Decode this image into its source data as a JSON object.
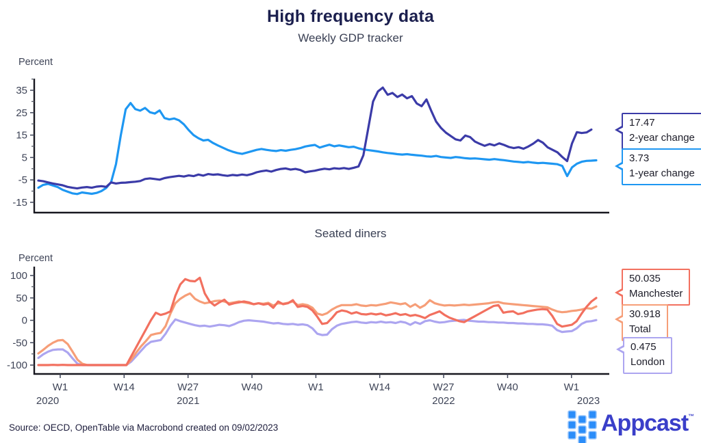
{
  "page": {
    "title": "High frequency data",
    "subtitle": "Weekly GDP tracker",
    "source": "Source: OECD, OpenTable via Macrobond created on 09/02/2023"
  },
  "logo": {
    "text": "Appcast",
    "tm": "™",
    "icon": "appcast-grid-icon",
    "icon_color": "#2b8df9",
    "text_color": "#3a3fc9"
  },
  "chart_data": [
    {
      "type": "line",
      "panel": "weekly-gdp-tracker",
      "title": "High frequency data",
      "subtitle": "Weekly GDP tracker",
      "ylabel": "Percent",
      "ylim": [
        -19.6,
        40.2
      ],
      "yticks": [
        35,
        25,
        15,
        5,
        -5,
        -15
      ],
      "yticks_minor": [
        40,
        30,
        20,
        10,
        0,
        -10
      ],
      "x_unit": "ISO weeks 2020-W48 to 2023-W6, weekly points",
      "grid": "off",
      "legend_position": "right-callouts",
      "series": [
        {
          "name": "1-year change",
          "color": "#1e97f2",
          "end_value": 3.73,
          "end_label": "3.73",
          "values": [
            -8.5,
            -7.2,
            -6.8,
            -7.5,
            -8.2,
            -9.4,
            -10.2,
            -11,
            -11.3,
            -10.6,
            -10.9,
            -11.2,
            -10.8,
            -10,
            -8.6,
            -6,
            2,
            15,
            26.5,
            29.3,
            26.6,
            25.9,
            27.1,
            25.2,
            24.6,
            26,
            22.6,
            22,
            22.4,
            21.6,
            19.8,
            17.2,
            15,
            13.6,
            12.6,
            12.9,
            11.5,
            10.4,
            9.4,
            8.4,
            7.6,
            7,
            6.6,
            7.2,
            7.8,
            8.4,
            8.8,
            8.4,
            8.1,
            7.9,
            8.3,
            8,
            8.4,
            8.7,
            9.2,
            9.9,
            10.3,
            10.6,
            9.4,
            10.1,
            10.7,
            10,
            10.4,
            10,
            9.6,
            9.8,
            9.1,
            8.6,
            8.3,
            8,
            7.7,
            7.3,
            7,
            6.8,
            6.5,
            6.3,
            6.5,
            6.2,
            6,
            5.8,
            5.5,
            5.4,
            5.7,
            5.2,
            5,
            4.8,
            5.2,
            5,
            4.7,
            4.5,
            4.6,
            4.4,
            4.2,
            4,
            4.3,
            4,
            3.8,
            3.5,
            3.2,
            3,
            2.8,
            3,
            2.7,
            2.5,
            2.6,
            2.4,
            2.2,
            2,
            1.2,
            -3.3,
            0.6,
            2.2,
            3.1,
            3.5,
            3.6,
            3.73
          ]
        },
        {
          "name": "2-year change",
          "color": "#3b3ba8",
          "end_value": 17.47,
          "end_label": "17.47",
          "values": [
            -5.3,
            -5.6,
            -6.1,
            -6.6,
            -7,
            -7.4,
            -8.1,
            -8.5,
            -8.8,
            -8.4,
            -8.2,
            -8.5,
            -8,
            -7.8,
            -8.1,
            -6.1,
            -6.6,
            -6.3,
            -6.2,
            -6,
            -5.8,
            -5.5,
            -4.6,
            -4.3,
            -4.6,
            -4.9,
            -4.2,
            -3.8,
            -3.5,
            -3.2,
            -3.5,
            -3,
            -3.3,
            -2.6,
            -3.1,
            -2.4,
            -2.7,
            -2.5,
            -2.9,
            -3.2,
            -2.8,
            -3,
            -2.6,
            -2.9,
            -2.4,
            -1.6,
            -1.1,
            -0.8,
            -1.3,
            -0.6,
            -0.1,
            0.1,
            -0.4,
            -0.1,
            -0.6,
            -1.6,
            -1.2,
            -0.9,
            -0.4,
            0,
            -0.3,
            0.2,
            0,
            0.3,
            -0.1,
            0.4,
            1,
            6,
            18,
            30,
            34.5,
            36.2,
            33,
            33.8,
            32,
            33.1,
            31.4,
            32.4,
            29.1,
            27.9,
            30.9,
            25.8,
            21,
            18.2,
            16.1,
            14.6,
            13.1,
            12.6,
            14.8,
            14.1,
            12.1,
            11.1,
            10.2,
            11,
            10.4,
            11.3,
            10.6,
            9.7,
            9.2,
            9.6,
            8.9,
            9.9,
            11.2,
            12.8,
            11.6,
            9.5,
            8.4,
            7.3,
            5.2,
            3.4,
            11.3,
            16.3,
            15.9,
            16.2,
            17.47
          ]
        }
      ],
      "callouts": [
        {
          "value": "17.47",
          "label": "2-year change",
          "color": "#3b3ba8"
        },
        {
          "value": "3.73",
          "label": "1-year change",
          "color": "#1e97f2"
        }
      ]
    },
    {
      "type": "line",
      "panel": "seated-diners",
      "title": "Seated diners",
      "ylabel": "Percent",
      "ylim": [
        -119.8,
        119.9
      ],
      "yticks": [
        100,
        50,
        0,
        -50,
        -100
      ],
      "yticks_minor": [
        75,
        25,
        -25,
        -75
      ],
      "grid": "off",
      "legend_position": "right-callouts",
      "xticks": {
        "pos": [
          4.47,
          17.53,
          30.59,
          43.65,
          56.71,
          69.76,
          82.82,
          95.88,
          108.94
        ],
        "labels": [
          "W1",
          "W14",
          "W27",
          "W40",
          "W1",
          "W14",
          "W27",
          "W40",
          "W1"
        ]
      },
      "years": {
        "pos": [
          1.9,
          30.6,
          82.8,
          112.4
        ],
        "labels": [
          "2020",
          "2021",
          "2022",
          "2023"
        ]
      },
      "series": [
        {
          "name": "London",
          "color": "#aca5f0",
          "end_value": 0.475,
          "end_label": "0.475",
          "values": [
            -84,
            -76,
            -70,
            -66,
            -65,
            -65,
            -72,
            -85,
            -97,
            -100,
            -100,
            -100,
            -100,
            -100,
            -100,
            -100,
            -100,
            -100,
            -100,
            -92,
            -80,
            -68,
            -56,
            -48,
            -46,
            -44,
            -30,
            -12,
            2,
            -2,
            -5,
            -8,
            -11,
            -13,
            -12,
            -14,
            -12,
            -10,
            -11,
            -13,
            -9,
            -4,
            -1,
            0,
            -1,
            -2,
            -3,
            -5,
            -7,
            -6,
            -8,
            -9,
            -8,
            -10,
            -9,
            -11,
            -18,
            -30,
            -33,
            -32,
            -20,
            -12,
            -8,
            -6,
            -4,
            -3,
            -5,
            -6,
            -4,
            -5,
            -3,
            -5,
            -4,
            -6,
            -3,
            -5,
            -10,
            -4,
            -8,
            -2,
            0,
            -3,
            -5,
            -4,
            -2,
            -1,
            0,
            1,
            -1,
            -2,
            -3,
            -3,
            -4,
            -4,
            -5,
            -5,
            -6,
            -6,
            -7,
            -7,
            -8,
            -8,
            -9,
            -9,
            -10,
            -12,
            -22,
            -26,
            -25,
            -24,
            -18,
            -8,
            -3,
            -2,
            0.475
          ]
        },
        {
          "name": "Total",
          "color": "#f69e78",
          "end_value": 30.918,
          "end_label": "30.918",
          "values": [
            -74,
            -66,
            -57,
            -50,
            -45,
            -44,
            -53,
            -70,
            -88,
            -97,
            -100,
            -100,
            -100,
            -100,
            -100,
            -100,
            -100,
            -100,
            -100,
            -88,
            -72,
            -58,
            -46,
            -33,
            -30,
            -28,
            -13,
            15,
            38,
            48,
            55,
            60,
            48,
            42,
            38,
            40,
            43,
            44,
            42,
            38,
            40,
            42,
            40,
            38,
            36,
            38,
            37,
            39,
            33,
            38,
            37,
            39,
            42,
            34,
            36,
            34,
            28,
            15,
            12,
            16,
            24,
            30,
            34,
            34,
            34,
            36,
            33,
            32,
            34,
            33,
            35,
            37,
            40,
            38,
            36,
            38,
            30,
            36,
            28,
            34,
            45,
            38,
            35,
            33,
            34,
            33,
            34,
            35,
            34,
            35,
            36,
            37,
            38,
            40,
            41,
            38,
            37,
            36,
            35,
            34,
            33,
            32,
            31,
            30,
            29,
            24,
            20,
            18,
            19,
            21,
            22,
            24,
            27,
            26,
            30.918
          ]
        },
        {
          "name": "Manchester",
          "color": "#f2705f",
          "end_value": 50.035,
          "end_label": "50.035",
          "values": [
            -100,
            -100,
            -100,
            -99.5,
            -100,
            -99.5,
            -100,
            -100,
            -100,
            -100,
            -100,
            -100,
            -100,
            -100,
            -100,
            -100,
            -100,
            -100,
            -100,
            -80,
            -60,
            -40,
            -20,
            0,
            17,
            12,
            15,
            20,
            55,
            80,
            92,
            88,
            87,
            95,
            60,
            42,
            33,
            40,
            46,
            35,
            38,
            40,
            42,
            40,
            36,
            38,
            35,
            37,
            28,
            42,
            36,
            38,
            45,
            30,
            32,
            30,
            22,
            8,
            -8,
            -6,
            5,
            18,
            22,
            20,
            15,
            18,
            14,
            13,
            15,
            13,
            15,
            11,
            13,
            16,
            12,
            14,
            10,
            12,
            9,
            5,
            12,
            16,
            20,
            12,
            6,
            2,
            -2,
            -4,
            2,
            8,
            14,
            20,
            26,
            32,
            34,
            17,
            19,
            20,
            14,
            16,
            20,
            22,
            24,
            25,
            24,
            10,
            -8,
            -14,
            -12,
            -10,
            -2,
            15,
            30,
            42,
            50.035
          ]
        }
      ],
      "callouts": [
        {
          "value": "50.035",
          "label": "Manchester",
          "color": "#f2705f"
        },
        {
          "value": "30.918",
          "label": "Total",
          "color": "#f69e78"
        },
        {
          "value": "0.475",
          "label": "London",
          "color": "#aca5f0"
        }
      ]
    }
  ]
}
